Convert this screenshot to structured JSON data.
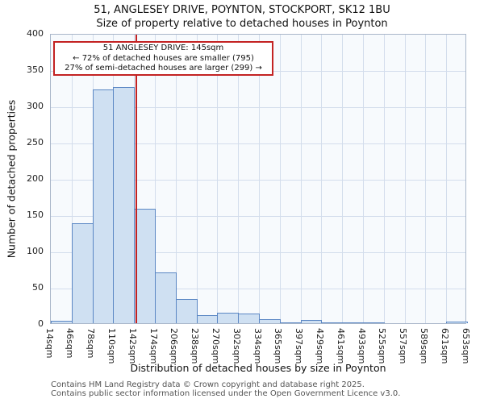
{
  "annotation": {
    "line1": "51 ANGLESEY DRIVE: 145sqm",
    "line2": "← 72% of detached houses are smaller (795)",
    "line3": "27% of semi-detached houses are larger (299) →"
  },
  "footer": {
    "line1": "Contains HM Land Registry data © Crown copyright and database right 2025.",
    "line2": "Contains public sector information licensed under the Open Government Licence v3.0."
  },
  "chart_data": {
    "type": "bar",
    "title": "51, ANGLESEY DRIVE, POYNTON, STOCKPORT, SK12 1BU",
    "subtitle": "Size of property relative to detached houses in Poynton",
    "xlabel": "Distribution of detached houses by size in Poynton",
    "ylabel": "Number of detached properties",
    "ylim": [
      0,
      400
    ],
    "ytick_step": 50,
    "grid": true,
    "legend_position": "none",
    "bin_edges_sqm": [
      14,
      46,
      78,
      110,
      142,
      174,
      206,
      238,
      270,
      302,
      334,
      365,
      397,
      429,
      461,
      493,
      525,
      557,
      589,
      621,
      653
    ],
    "tick_labels": [
      "14sqm",
      "46sqm",
      "78sqm",
      "110sqm",
      "142sqm",
      "174sqm",
      "206sqm",
      "238sqm",
      "270sqm",
      "302sqm",
      "334sqm",
      "365sqm",
      "397sqm",
      "429sqm",
      "461sqm",
      "493sqm",
      "525sqm",
      "557sqm",
      "589sqm",
      "621sqm",
      "653sqm"
    ],
    "values": [
      3,
      138,
      322,
      326,
      158,
      70,
      33,
      11,
      15,
      13,
      6,
      1,
      4,
      1,
      1,
      1,
      0,
      0,
      0,
      2
    ],
    "marker_value_sqm": 145,
    "colors": {
      "bar_fill": "#cfe0f2",
      "bar_border": "#5b87c4",
      "marker_line": "#c32222",
      "annotation_border": "#c32222",
      "grid_line": "#d3ddec",
      "plot_background": "#f7fafd"
    }
  }
}
